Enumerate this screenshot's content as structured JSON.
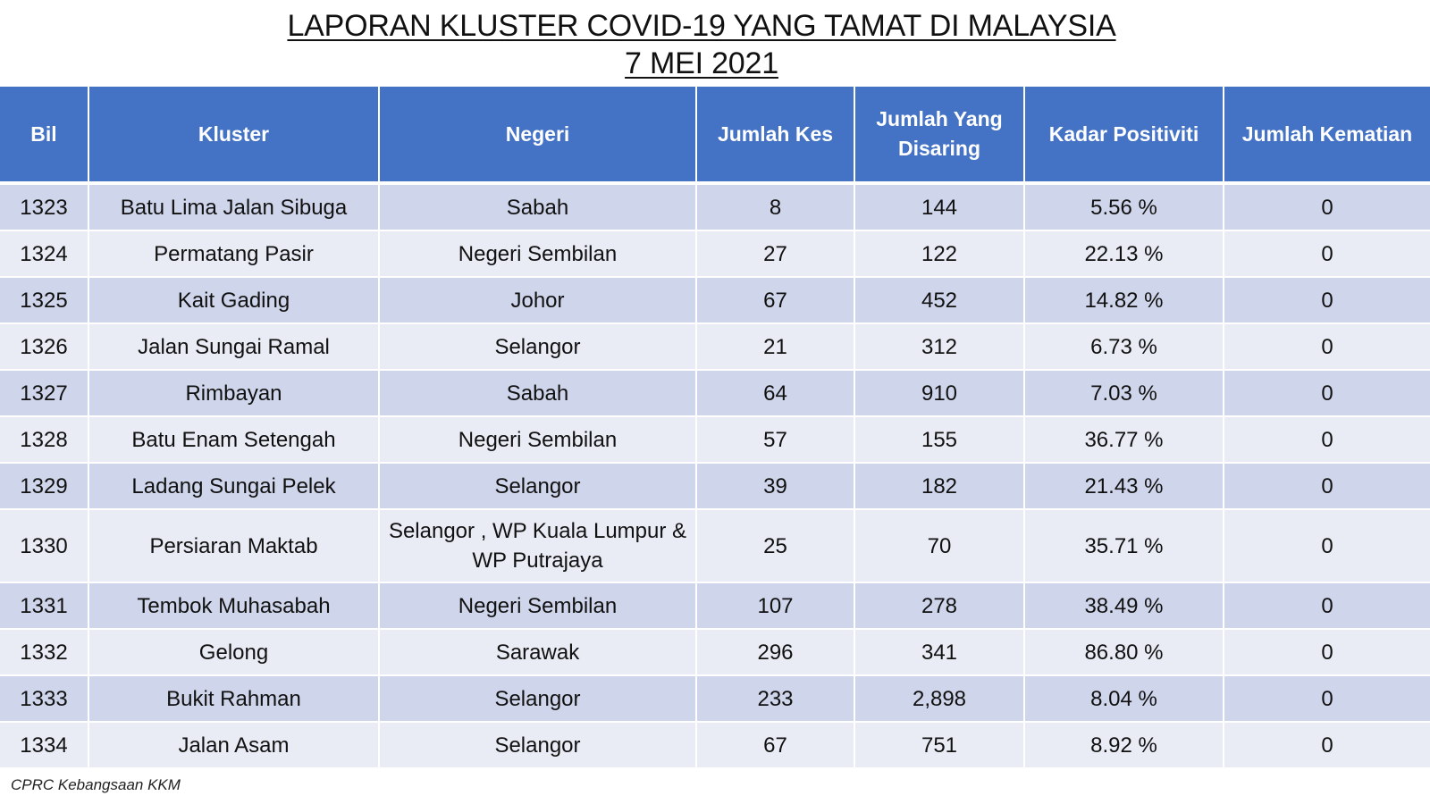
{
  "title": {
    "line1": "LAPORAN KLUSTER COVID-19 YANG TAMAT DI MALAYSIA",
    "line2": "7 MEI 2021"
  },
  "table": {
    "headers": {
      "bil": "Bil",
      "kluster": "Kluster",
      "negeri": "Negeri",
      "jumlah_kes": "Jumlah Kes",
      "jumlah_disaring": "Jumlah Yang Disaring",
      "kadar_positiviti": "Kadar Positiviti",
      "jumlah_kematian": "Jumlah Kematian"
    },
    "rows": [
      {
        "bil": "1323",
        "kluster": "Batu Lima Jalan Sibuga",
        "negeri": "Sabah",
        "kes": "8",
        "disaring": "144",
        "positiviti": "5.56 %",
        "kematian": "0"
      },
      {
        "bil": "1324",
        "kluster": "Permatang Pasir",
        "negeri": "Negeri Sembilan",
        "kes": "27",
        "disaring": "122",
        "positiviti": "22.13 %",
        "kematian": "0"
      },
      {
        "bil": "1325",
        "kluster": "Kait Gading",
        "negeri": "Johor",
        "kes": "67",
        "disaring": "452",
        "positiviti": "14.82 %",
        "kematian": "0"
      },
      {
        "bil": "1326",
        "kluster": "Jalan Sungai Ramal",
        "negeri": "Selangor",
        "kes": "21",
        "disaring": "312",
        "positiviti": "6.73 %",
        "kematian": "0"
      },
      {
        "bil": "1327",
        "kluster": "Rimbayan",
        "negeri": "Sabah",
        "kes": "64",
        "disaring": "910",
        "positiviti": "7.03 %",
        "kematian": "0"
      },
      {
        "bil": "1328",
        "kluster": "Batu Enam Setengah",
        "negeri": "Negeri Sembilan",
        "kes": "57",
        "disaring": "155",
        "positiviti": "36.77 %",
        "kematian": "0"
      },
      {
        "bil": "1329",
        "kluster": "Ladang Sungai Pelek",
        "negeri": "Selangor",
        "kes": "39",
        "disaring": "182",
        "positiviti": "21.43 %",
        "kematian": "0"
      },
      {
        "bil": "1330",
        "kluster": "Persiaran Maktab",
        "negeri": "Selangor , WP Kuala Lumpur & WP Putrajaya",
        "kes": "25",
        "disaring": "70",
        "positiviti": "35.71 %",
        "kematian": "0"
      },
      {
        "bil": "1331",
        "kluster": "Tembok Muhasabah",
        "negeri": "Negeri Sembilan",
        "kes": "107",
        "disaring": "278",
        "positiviti": "38.49 %",
        "kematian": "0"
      },
      {
        "bil": "1332",
        "kluster": "Gelong",
        "negeri": "Sarawak",
        "kes": "296",
        "disaring": "341",
        "positiviti": "86.80 %",
        "kematian": "0"
      },
      {
        "bil": "1333",
        "kluster": "Bukit Rahman",
        "negeri": "Selangor",
        "kes": "233",
        "disaring": "2,898",
        "positiviti": "8.04 %",
        "kematian": "0"
      },
      {
        "bil": "1334",
        "kluster": "Jalan Asam",
        "negeri": "Selangor",
        "kes": "67",
        "disaring": "751",
        "positiviti": "8.92 %",
        "kematian": "0"
      }
    ]
  },
  "footer": {
    "source": "CPRC Kebangsaan KKM"
  },
  "colors": {
    "header_bg": "#4472c4",
    "row_dark": "#cfd5ea",
    "row_light": "#e9ebf5"
  }
}
